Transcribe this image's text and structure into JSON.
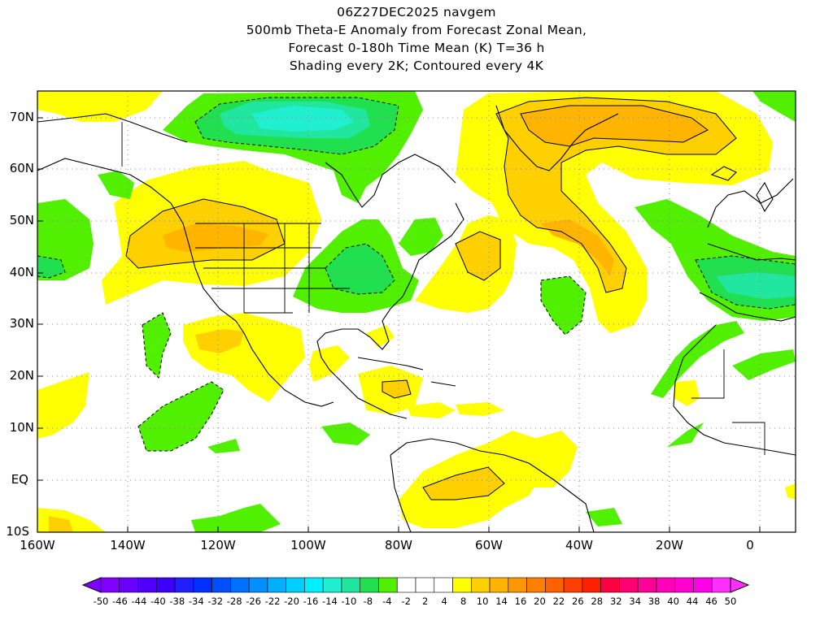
{
  "title": {
    "line1": "06Z27DEC2025 navgem",
    "line2": "500mb Theta-E Anomaly from Forecast Zonal Mean,",
    "line3": "Forecast 0-180h Time Mean (K) T=36 h",
    "line4": "Shading every 2K; Contoured every 4K"
  },
  "map": {
    "lat_labels": [
      "70N",
      "60N",
      "50N",
      "40N",
      "30N",
      "20N",
      "10N",
      "EQ",
      "10S"
    ],
    "lon_labels": [
      "160W",
      "140W",
      "120W",
      "100W",
      "80W",
      "60W",
      "40W",
      "20W",
      "0"
    ],
    "grid": "dotted",
    "colors": {
      "pos_2_4": "#ffffff",
      "pos_4_8": "#ffff00",
      "pos_8_10": "#ffd000",
      "pos_10_14": "#ffb400",
      "neg_4_8": "#50f000",
      "neg_8_10": "#20e050",
      "neg_10_14": "#20e6a0",
      "neg_14_16": "#20f0d0"
    }
  },
  "colorbar": {
    "labels": [
      "-50",
      "-46",
      "-44",
      "-40",
      "-38",
      "-34",
      "-32",
      "-28",
      "-26",
      "-22",
      "-20",
      "-16",
      "-14",
      "-10",
      "-8",
      "-4",
      "-2",
      "2",
      "4",
      "8",
      "10",
      "14",
      "16",
      "20",
      "22",
      "26",
      "28",
      "32",
      "34",
      "38",
      "40",
      "44",
      "46",
      "50"
    ],
    "colors": [
      "#8000ff",
      "#6a00ff",
      "#5000ff",
      "#3c00ff",
      "#2020ff",
      "#0030ff",
      "#0050ff",
      "#0070ff",
      "#0090ff",
      "#00b0ff",
      "#00d0ff",
      "#00f0ff",
      "#20f0d0",
      "#20e6a0",
      "#20e050",
      "#50f000",
      "#ffffff",
      "#ffffff",
      "#ffffff",
      "#ffff00",
      "#ffd000",
      "#ffb400",
      "#ff9800",
      "#ff8000",
      "#ff6000",
      "#ff4000",
      "#ff2000",
      "#ff0040",
      "#ff0070",
      "#ff0098",
      "#ff00b8",
      "#ff00d0",
      "#ff00e8",
      "#ff30ff"
    ]
  }
}
